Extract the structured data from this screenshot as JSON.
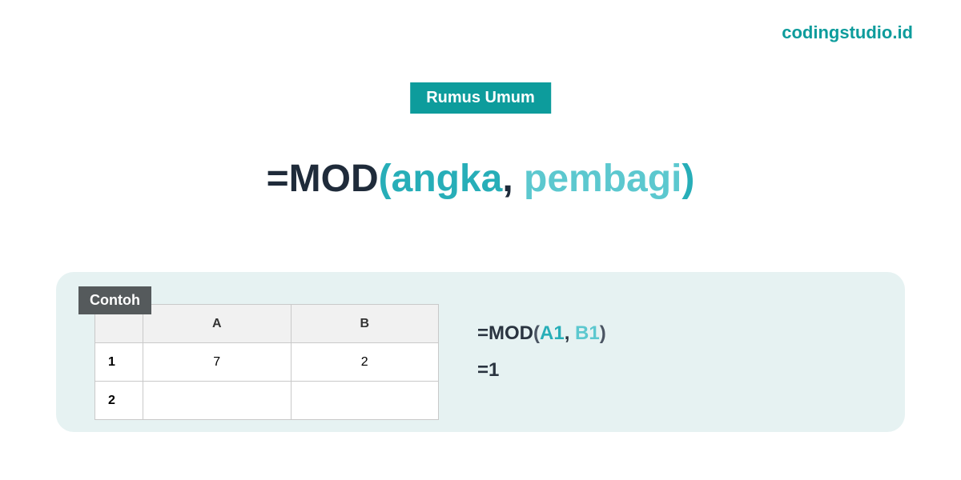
{
  "brand": "codingstudio.id",
  "badge": "Rumus Umum",
  "formula": {
    "eq": "=",
    "fn": "MOD",
    "lparen": "(",
    "arg1": "angka",
    "comma": ", ",
    "arg2": "pembagi",
    "rparen": ")"
  },
  "example": {
    "tag": "Contoh",
    "table": {
      "headers": {
        "blank": "",
        "a": "A",
        "b": "B"
      },
      "rows": [
        {
          "label": "1",
          "a": "7",
          "b": "2"
        },
        {
          "label": "2",
          "a": "",
          "b": ""
        }
      ]
    },
    "usage": {
      "prefix": "=MOD",
      "lparen": "(",
      "ref1": "A1",
      "comma": ", ",
      "ref2": "B1",
      "rparen": ")",
      "result": "=1"
    }
  },
  "colors": {
    "teal": "#0d9c9c",
    "teal_light": "#27aeb8",
    "teal_lighter": "#5cc8cf",
    "panel_bg": "#e6f2f2",
    "tag_bg": "#555a5c",
    "text_dark": "#1f2b3a"
  }
}
